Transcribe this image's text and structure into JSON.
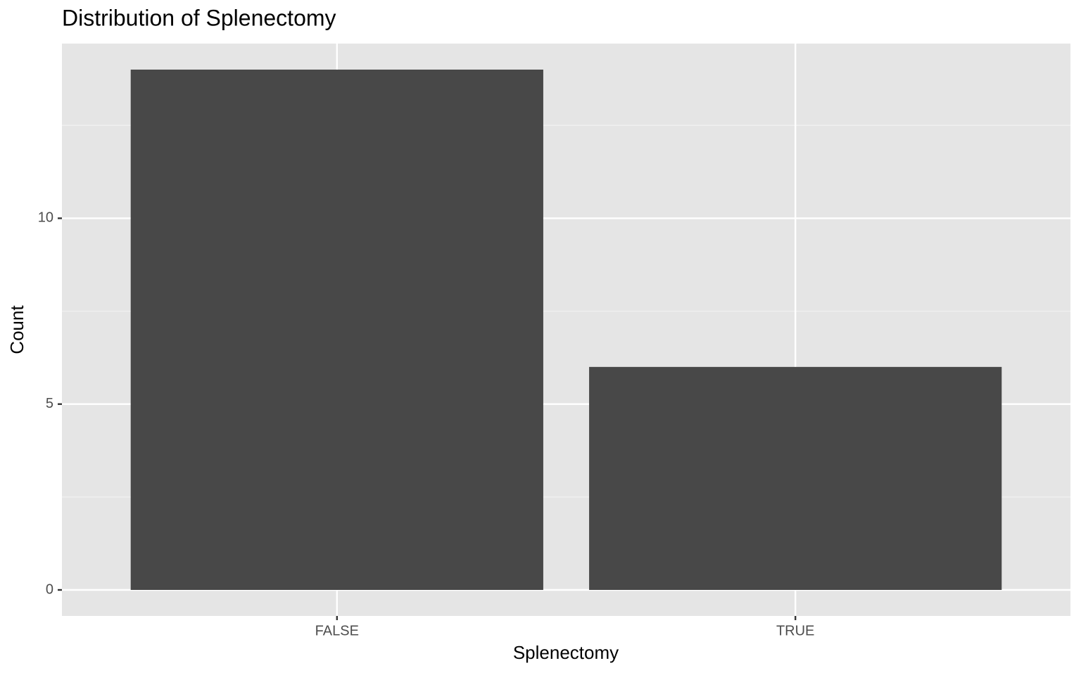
{
  "chart_data": {
    "type": "bar",
    "title": "Distribution of Splenectomy",
    "x_label": "Splenectomy",
    "y_label": "Count",
    "categories": [
      "FALSE",
      "TRUE"
    ],
    "values": [
      14,
      6
    ],
    "color": "#484848",
    "ylim": [
      -0.7,
      14.7
    ],
    "yticks": [
      0,
      5,
      10
    ],
    "minor_grid": [
      2.5,
      7.5,
      12.5
    ],
    "grid": true
  }
}
